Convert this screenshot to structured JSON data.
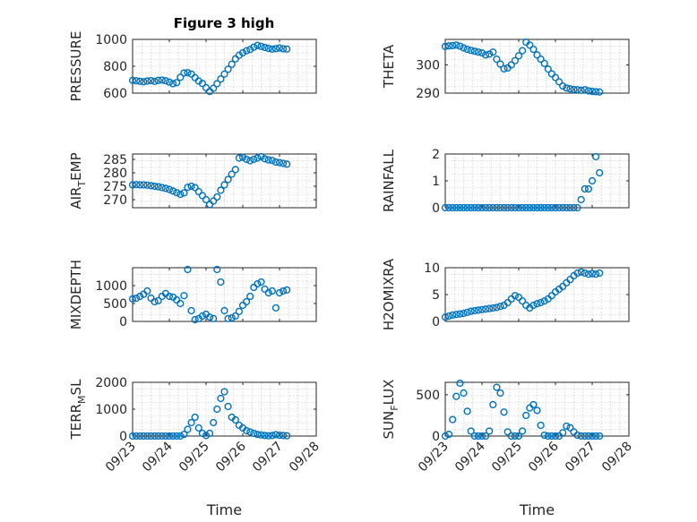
{
  "title": "Figure 3 high",
  "marker_color": "#0072BD",
  "x_ticks": [
    "09/23",
    "09/24",
    "09/25",
    "09/26",
    "09/27",
    "09/28"
  ],
  "x_label": "Time",
  "chart_data": [
    {
      "type": "scatter",
      "ylabel": "PRESSURE",
      "ylim": [
        600,
        1000
      ],
      "yticks": [
        600,
        800,
        1000
      ],
      "xlim": [
        0,
        5
      ],
      "grid": true,
      "title": "Figure 3 high",
      "x": [
        0.0,
        0.1,
        0.2,
        0.3,
        0.4,
        0.5,
        0.6,
        0.7,
        0.8,
        0.9,
        1.0,
        1.1,
        1.2,
        1.3,
        1.4,
        1.5,
        1.6,
        1.7,
        1.8,
        1.9,
        2.0,
        2.1,
        2.2,
        2.3,
        2.4,
        2.5,
        2.6,
        2.7,
        2.8,
        2.9,
        3.0,
        3.1,
        3.2,
        3.3,
        3.4,
        3.5,
        3.6,
        3.7,
        3.8,
        3.9,
        4.0,
        4.1,
        4.2
      ],
      "y": [
        695,
        692,
        688,
        684,
        690,
        693,
        688,
        695,
        697,
        692,
        682,
        670,
        678,
        718,
        750,
        752,
        742,
        715,
        690,
        672,
        640,
        612,
        636,
        670,
        705,
        742,
        778,
        815,
        855,
        882,
        900,
        915,
        925,
        942,
        955,
        948,
        940,
        933,
        928,
        931,
        936,
        930,
        928
      ]
    },
    {
      "type": "scatter",
      "ylabel": "THETA",
      "ylim": [
        290,
        309
      ],
      "yticks": [
        290,
        300
      ],
      "xlim": [
        0,
        5
      ],
      "grid": true,
      "x": [
        0.0,
        0.1,
        0.2,
        0.3,
        0.4,
        0.5,
        0.6,
        0.7,
        0.8,
        0.9,
        1.0,
        1.1,
        1.2,
        1.3,
        1.4,
        1.5,
        1.6,
        1.7,
        1.8,
        1.9,
        2.0,
        2.1,
        2.2,
        2.3,
        2.4,
        2.5,
        2.6,
        2.7,
        2.8,
        2.9,
        3.0,
        3.1,
        3.2,
        3.3,
        3.4,
        3.5,
        3.6,
        3.7,
        3.8,
        3.9,
        4.0,
        4.1,
        4.2
      ],
      "y": [
        306.5,
        306.7,
        306.8,
        307,
        306.6,
        306,
        305.5,
        305.1,
        304.8,
        304.5,
        304.2,
        303.5,
        303.8,
        304.5,
        302,
        300.3,
        298.6,
        298.9,
        300,
        301.5,
        303.2,
        305,
        308,
        307,
        305.5,
        303.5,
        302,
        300.5,
        298.5,
        296.8,
        295.5,
        294,
        292.5,
        291.8,
        291.5,
        291.3,
        291.2,
        291,
        291.2,
        290.8,
        290.6,
        290.5,
        290.4
      ]
    },
    {
      "type": "scatter",
      "ylabel": "AIR_TEMP",
      "ylim": [
        267,
        287
      ],
      "yticks": [
        270,
        275,
        280,
        285
      ],
      "xlim": [
        0,
        5
      ],
      "grid": true,
      "x": [
        0.0,
        0.1,
        0.2,
        0.3,
        0.4,
        0.5,
        0.6,
        0.7,
        0.8,
        0.9,
        1.0,
        1.1,
        1.2,
        1.3,
        1.4,
        1.5,
        1.6,
        1.7,
        1.8,
        1.9,
        2.0,
        2.1,
        2.2,
        2.3,
        2.4,
        2.5,
        2.6,
        2.7,
        2.8,
        2.9,
        3.0,
        3.1,
        3.2,
        3.3,
        3.4,
        3.5,
        3.6,
        3.7,
        3.8,
        3.9,
        4.0,
        4.1,
        4.2
      ],
      "y": [
        275.5,
        275.6,
        275.5,
        275.5,
        275.4,
        275.2,
        275,
        274.8,
        274.5,
        274.2,
        273.8,
        273.2,
        272.6,
        272,
        272.5,
        274.6,
        275,
        274.5,
        273,
        271.5,
        270,
        268.2,
        269.5,
        271,
        273.5,
        275.5,
        277.5,
        279.5,
        281.2,
        285.5,
        285.8,
        285,
        284.5,
        285,
        285.5,
        286,
        285.2,
        284.8,
        284.6,
        284,
        283.8,
        283.5,
        283.2
      ]
    },
    {
      "type": "scatter",
      "ylabel": "RAINFALL",
      "ylim": [
        0,
        2
      ],
      "yticks": [
        0,
        1,
        2
      ],
      "xlim": [
        0,
        5
      ],
      "grid": true,
      "x": [
        0.0,
        0.1,
        0.2,
        0.3,
        0.4,
        0.5,
        0.6,
        0.7,
        0.8,
        0.9,
        1.0,
        1.1,
        1.2,
        1.3,
        1.4,
        1.5,
        1.6,
        1.7,
        1.8,
        1.9,
        2.0,
        2.1,
        2.2,
        2.3,
        2.4,
        2.5,
        2.6,
        2.7,
        2.8,
        2.9,
        3.0,
        3.1,
        3.2,
        3.3,
        3.4,
        3.5,
        3.6,
        3.7,
        3.8,
        3.9,
        4.0,
        4.1,
        4.2
      ],
      "y": [
        0,
        0,
        0,
        0,
        0,
        0,
        0,
        0,
        0,
        0,
        0,
        0,
        0,
        0,
        0,
        0,
        0,
        0,
        0,
        0,
        0,
        0,
        0,
        0,
        0,
        0,
        0,
        0,
        0,
        0,
        0,
        0,
        0,
        0,
        0,
        0,
        0,
        0.3,
        0.7,
        0.7,
        1.0,
        1.9,
        1.3
      ]
    },
    {
      "type": "scatter",
      "ylabel": "MIXDEPTH",
      "ylim": [
        0,
        1500
      ],
      "yticks": [
        0,
        500,
        1000
      ],
      "xlim": [
        0,
        5
      ],
      "grid": true,
      "x": [
        0.0,
        0.1,
        0.2,
        0.3,
        0.4,
        0.5,
        0.6,
        0.7,
        0.8,
        0.9,
        1.0,
        1.1,
        1.2,
        1.3,
        1.4,
        1.5,
        1.6,
        1.7,
        1.8,
        1.9,
        2.0,
        2.1,
        2.2,
        2.3,
        2.4,
        2.5,
        2.6,
        2.7,
        2.8,
        2.9,
        3.0,
        3.1,
        3.2,
        3.3,
        3.4,
        3.5,
        3.6,
        3.7,
        3.8,
        3.9,
        4.0,
        4.1,
        4.2
      ],
      "y": [
        630,
        650,
        700,
        760,
        850,
        650,
        550,
        580,
        700,
        780,
        700,
        680,
        600,
        500,
        720,
        1450,
        300,
        50,
        80,
        150,
        200,
        120,
        80,
        1450,
        1100,
        300,
        80,
        100,
        150,
        280,
        450,
        550,
        700,
        950,
        1050,
        1100,
        900,
        800,
        850,
        380,
        800,
        850,
        880
      ]
    },
    {
      "type": "scatter",
      "ylabel": "H2OMIXRA",
      "ylim": [
        0,
        10
      ],
      "yticks": [
        0,
        5,
        10
      ],
      "xlim": [
        0,
        5
      ],
      "grid": true,
      "x": [
        0.0,
        0.1,
        0.2,
        0.3,
        0.4,
        0.5,
        0.6,
        0.7,
        0.8,
        0.9,
        1.0,
        1.1,
        1.2,
        1.3,
        1.4,
        1.5,
        1.6,
        1.7,
        1.8,
        1.9,
        2.0,
        2.1,
        2.2,
        2.3,
        2.4,
        2.5,
        2.6,
        2.7,
        2.8,
        2.9,
        3.0,
        3.1,
        3.2,
        3.3,
        3.4,
        3.5,
        3.6,
        3.7,
        3.8,
        3.9,
        4.0,
        4.1,
        4.2
      ],
      "y": [
        0.8,
        1.0,
        1.2,
        1.3,
        1.4,
        1.5,
        1.7,
        1.9,
        2.0,
        2.1,
        2.2,
        2.3,
        2.4,
        2.5,
        2.6,
        2.8,
        3.0,
        3.5,
        4.2,
        4.8,
        4.5,
        3.8,
        3.0,
        2.5,
        3.0,
        3.3,
        3.5,
        3.8,
        4.2,
        4.8,
        5.5,
        6.0,
        6.5,
        7.2,
        7.8,
        8.5,
        9.0,
        9.2,
        9.0,
        8.8,
        8.9,
        8.8,
        9.0
      ]
    },
    {
      "type": "scatter",
      "ylabel": "TERR_MSL",
      "ylim": [
        0,
        2000
      ],
      "yticks": [
        0,
        1000,
        2000
      ],
      "xlim": [
        0,
        5
      ],
      "grid": true,
      "x": [
        0.0,
        0.1,
        0.2,
        0.3,
        0.4,
        0.5,
        0.6,
        0.7,
        0.8,
        0.9,
        1.0,
        1.1,
        1.2,
        1.3,
        1.4,
        1.5,
        1.6,
        1.7,
        1.8,
        1.9,
        2.0,
        2.1,
        2.2,
        2.3,
        2.4,
        2.5,
        2.6,
        2.7,
        2.8,
        2.9,
        3.0,
        3.1,
        3.2,
        3.3,
        3.4,
        3.5,
        3.6,
        3.7,
        3.8,
        3.9,
        4.0,
        4.1,
        4.2
      ],
      "y": [
        0,
        0,
        0,
        0,
        0,
        0,
        0,
        0,
        0,
        0,
        0,
        0,
        0,
        0,
        60,
        250,
        500,
        700,
        300,
        100,
        20,
        100,
        500,
        1000,
        1400,
        1650,
        1100,
        700,
        600,
        400,
        300,
        200,
        150,
        100,
        60,
        40,
        20,
        10,
        20,
        50,
        30,
        20,
        10
      ]
    },
    {
      "type": "scatter",
      "ylabel": "SUN_FLUX",
      "ylim": [
        0,
        650
      ],
      "yticks": [
        0,
        500
      ],
      "xlim": [
        0,
        5
      ],
      "grid": true,
      "x": [
        0.0,
        0.1,
        0.2,
        0.3,
        0.4,
        0.5,
        0.6,
        0.7,
        0.8,
        0.9,
        1.0,
        1.1,
        1.2,
        1.3,
        1.4,
        1.5,
        1.6,
        1.7,
        1.8,
        1.9,
        2.0,
        2.1,
        2.2,
        2.3,
        2.4,
        2.5,
        2.6,
        2.7,
        2.8,
        2.9,
        3.0,
        3.1,
        3.2,
        3.3,
        3.4,
        3.5,
        3.6,
        3.7,
        3.8,
        3.9,
        4.0,
        4.1,
        4.2
      ],
      "y": [
        0,
        20,
        200,
        480,
        640,
        520,
        300,
        60,
        0,
        0,
        0,
        0,
        60,
        380,
        590,
        520,
        290,
        50,
        0,
        0,
        0,
        60,
        250,
        340,
        380,
        310,
        130,
        10,
        0,
        0,
        0,
        0,
        40,
        120,
        100,
        50,
        10,
        0,
        0,
        0,
        0,
        0,
        0
      ]
    }
  ]
}
